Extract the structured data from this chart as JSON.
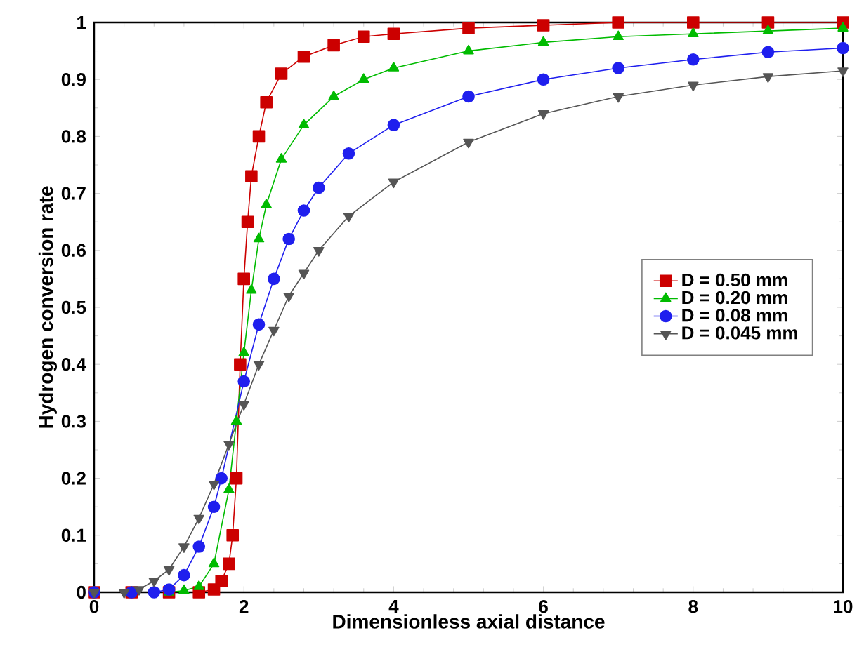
{
  "chart_data": {
    "type": "line",
    "xlabel": "Dimensionless axial distance",
    "ylabel": "Hydrogen conversion rate",
    "xlim": [
      0,
      10
    ],
    "ylim": [
      0,
      1
    ],
    "xticks": [
      0,
      2,
      4,
      6,
      8,
      10
    ],
    "yticks": [
      0,
      0.1,
      0.2,
      0.3,
      0.4,
      0.5,
      0.6,
      0.7,
      0.8,
      0.9,
      1
    ],
    "legend": "right",
    "grid": false,
    "series": [
      {
        "name": "D = 0.50   mm",
        "color": "#cc0000",
        "marker": "square",
        "x": [
          0,
          0.5,
          1.0,
          1.4,
          1.6,
          1.7,
          1.8,
          1.85,
          1.9,
          1.95,
          2.0,
          2.05,
          2.1,
          2.2,
          2.3,
          2.5,
          2.8,
          3.2,
          3.6,
          4.0,
          5.0,
          6.0,
          7.0,
          8.0,
          9.0,
          10.0
        ],
        "values": [
          0,
          0,
          0,
          0,
          0.005,
          0.02,
          0.05,
          0.1,
          0.2,
          0.4,
          0.55,
          0.65,
          0.73,
          0.8,
          0.86,
          0.91,
          0.94,
          0.96,
          0.975,
          0.98,
          0.99,
          0.995,
          1.0,
          1.0,
          1.0,
          1.0
        ]
      },
      {
        "name": "D = 0.20   mm",
        "color": "#00bb00",
        "marker": "triangle",
        "x": [
          0,
          0.5,
          1.0,
          1.2,
          1.4,
          1.6,
          1.8,
          1.9,
          2.0,
          2.1,
          2.2,
          2.3,
          2.5,
          2.8,
          3.2,
          3.6,
          4.0,
          5.0,
          6.0,
          7.0,
          8.0,
          9.0,
          10.0
        ],
        "values": [
          0,
          0,
          0,
          0.003,
          0.01,
          0.05,
          0.18,
          0.3,
          0.42,
          0.53,
          0.62,
          0.68,
          0.76,
          0.82,
          0.87,
          0.9,
          0.92,
          0.95,
          0.965,
          0.975,
          0.98,
          0.985,
          0.99
        ]
      },
      {
        "name": "D = 0.08   mm",
        "color": "#1f1fee",
        "marker": "circle",
        "x": [
          0,
          0.5,
          0.8,
          1.0,
          1.2,
          1.4,
          1.6,
          1.7,
          2.0,
          2.2,
          2.4,
          2.6,
          2.8,
          3.0,
          3.4,
          4.0,
          5.0,
          6.0,
          7.0,
          8.0,
          9.0,
          10.0
        ],
        "values": [
          0,
          0,
          0,
          0.005,
          0.03,
          0.08,
          0.15,
          0.2,
          0.37,
          0.47,
          0.55,
          0.62,
          0.67,
          0.71,
          0.77,
          0.82,
          0.87,
          0.9,
          0.92,
          0.935,
          0.948,
          0.955
        ]
      },
      {
        "name": "D = 0.045 mm",
        "color": "#555555",
        "marker": "triangle down",
        "x": [
          0,
          0.4,
          0.6,
          0.8,
          1.0,
          1.2,
          1.4,
          1.6,
          1.8,
          2.0,
          2.2,
          2.4,
          2.6,
          2.8,
          3.0,
          3.4,
          4.0,
          5.0,
          6.0,
          7.0,
          8.0,
          9.0,
          10.0
        ],
        "values": [
          0,
          0,
          0.005,
          0.02,
          0.04,
          0.08,
          0.13,
          0.19,
          0.26,
          0.33,
          0.4,
          0.46,
          0.52,
          0.56,
          0.6,
          0.66,
          0.72,
          0.79,
          0.84,
          0.87,
          0.89,
          0.905,
          0.915
        ]
      }
    ]
  }
}
